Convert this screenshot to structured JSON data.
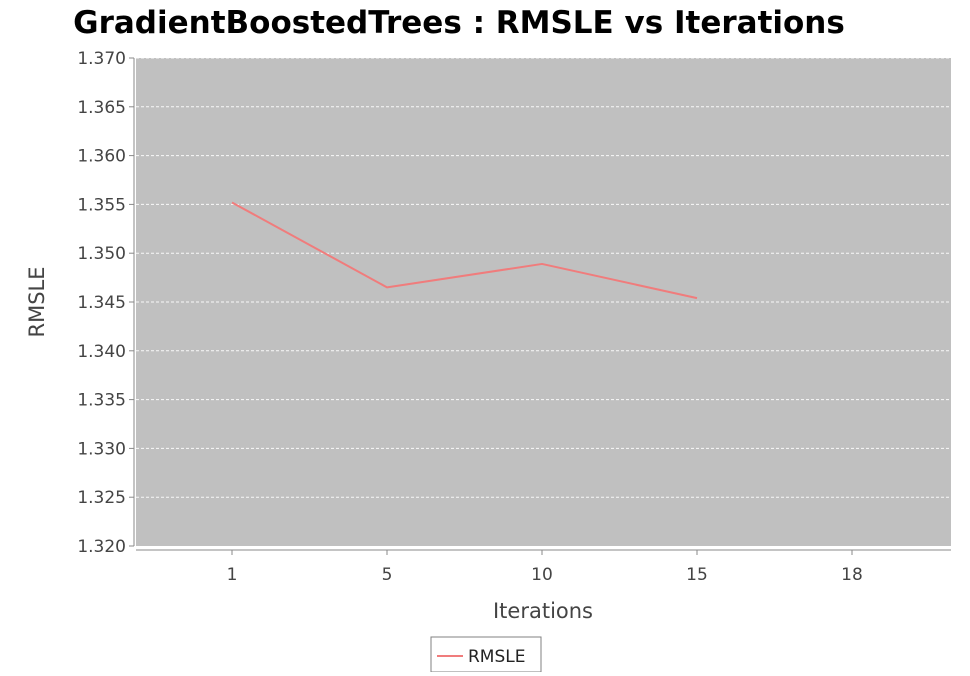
{
  "chart_data": {
    "type": "line",
    "title": "GradientBoostedTrees : RMSLE vs Iterations",
    "xlabel": "Iterations",
    "ylabel": "RMSLE",
    "categories": [
      "1",
      "5",
      "10",
      "15",
      "18"
    ],
    "series": [
      {
        "name": "RMSLE",
        "color": "#f07c7c",
        "values": [
          1.3552,
          1.3465,
          1.3489,
          1.3454,
          null
        ]
      }
    ],
    "ylim": [
      1.32,
      1.37
    ],
    "yticks": [
      "1.320",
      "1.325",
      "1.330",
      "1.335",
      "1.340",
      "1.345",
      "1.350",
      "1.355",
      "1.360",
      "1.365",
      "1.370"
    ],
    "grid": true,
    "legend": "bottom-center",
    "colors": {
      "plot_background": "#c0c0c0",
      "gridline": "#ffffff",
      "axis": "#888888"
    }
  }
}
